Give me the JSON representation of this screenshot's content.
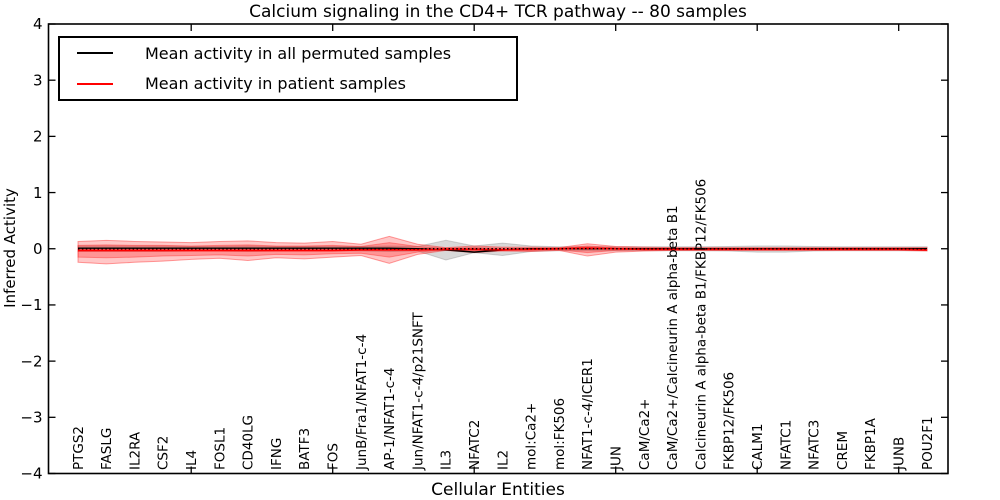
{
  "chart_data": {
    "type": "line",
    "title": "Calcium signaling in the CD4+ TCR pathway -- 80 samples",
    "xlabel": "Cellular Entities",
    "ylabel": "Inferred Activity",
    "ylim": [
      -4,
      4
    ],
    "yticks": [
      {
        "value": 4,
        "label": "4"
      },
      {
        "value": 3,
        "label": "3"
      },
      {
        "value": 2,
        "label": "2"
      },
      {
        "value": 1,
        "label": "1"
      },
      {
        "value": 0,
        "label": "0"
      },
      {
        "value": -1,
        "label": "−1"
      },
      {
        "value": -2,
        "label": "−2"
      },
      {
        "value": -3,
        "label": "−3"
      },
      {
        "value": -4,
        "label": "−4"
      }
    ],
    "xtick_values": [
      5,
      10,
      15,
      20,
      25,
      30
    ],
    "grid": false,
    "legend_position": "upper-left",
    "categories": [
      "PTGS2",
      "FASLG",
      "IL2RA",
      "CSF2",
      "IL4",
      "FOSL1",
      "CD40LG",
      "IFNG",
      "BATF3",
      "FOS",
      "JunB/Fra1/NFAT1-c-4",
      "AP-1/NFAT1-c-4",
      "Jun/NFAT1-c-4/p21SNFT",
      "IL3",
      "NFATC2",
      "IL2",
      "mol:Ca2+",
      "mol:FK506",
      "NFAT1-c-4/ICER1",
      "JUN",
      "CaM/Ca2+",
      "CaM/Ca2+/Calcineurin A alpha-beta B1",
      "Calcineurin A alpha-beta B1/FKBP12/FK506",
      "FKBP12/FK506",
      "CALM1",
      "NFATC1",
      "NFATC3",
      "CREM",
      "FKBP1A",
      "JUNB",
      "POU2F1"
    ],
    "series": [
      {
        "name": "Mean activity in all permuted samples",
        "color": "#000000",
        "values": [
          0.01,
          0.01,
          0.01,
          0.01,
          0.01,
          0.01,
          0.01,
          0.01,
          0.01,
          0.01,
          0.01,
          0.01,
          0.0,
          -0.02,
          -0.06,
          -0.02,
          0.0,
          0.0,
          0.0,
          0.0,
          0.0,
          0.0,
          0.0,
          0.0,
          0.0,
          0.0,
          0.0,
          0.0,
          0.0,
          0.0,
          0.0
        ]
      },
      {
        "name": "Mean activity in patient samples",
        "color": "#ff0000",
        "values": [
          -0.03,
          -0.03,
          -0.03,
          -0.03,
          -0.03,
          -0.03,
          -0.03,
          -0.03,
          -0.03,
          -0.03,
          -0.02,
          -0.02,
          -0.02,
          -0.01,
          -0.01,
          -0.02,
          -0.01,
          0.0,
          0.01,
          0.0,
          -0.01,
          -0.01,
          -0.01,
          -0.01,
          -0.01,
          -0.01,
          -0.01,
          -0.01,
          -0.01,
          -0.01,
          -0.02
        ]
      }
    ],
    "bands": [
      {
        "name": "permuted-samples-std",
        "color": "#828282",
        "fill_opacity": 0.3,
        "edge_opacity": 0.35,
        "upper": [
          0.05,
          0.05,
          0.05,
          0.05,
          0.04,
          0.04,
          0.05,
          0.04,
          0.04,
          0.04,
          0.04,
          0.05,
          0.04,
          0.15,
          0.05,
          0.1,
          0.05,
          0.035,
          0.035,
          0.035,
          0.035,
          0.035,
          0.035,
          0.04,
          0.05,
          0.05,
          0.04,
          0.035,
          0.035,
          0.035,
          0.035
        ],
        "lower": [
          -0.05,
          -0.05,
          -0.05,
          -0.05,
          -0.04,
          -0.04,
          -0.05,
          -0.04,
          -0.04,
          -0.04,
          -0.04,
          -0.05,
          -0.04,
          -0.2,
          -0.07,
          -0.12,
          -0.05,
          -0.035,
          -0.035,
          -0.035,
          -0.035,
          -0.035,
          -0.035,
          -0.04,
          -0.06,
          -0.06,
          -0.04,
          -0.035,
          -0.035,
          -0.035,
          -0.035
        ]
      },
      {
        "name": "patient-samples-std-outer",
        "color": "#ff1414",
        "fill_opacity": 0.24,
        "edge_opacity": 0.4,
        "upper": [
          0.13,
          0.15,
          0.13,
          0.12,
          0.11,
          0.13,
          0.14,
          0.11,
          0.1,
          0.13,
          0.08,
          0.22,
          0.08,
          0.02,
          0.05,
          0.03,
          0.03,
          0.02,
          0.09,
          0.04,
          0.03,
          0.02,
          0.02,
          0.02,
          0.02,
          0.02,
          0.02,
          0.02,
          0.02,
          0.02,
          0.02
        ],
        "lower": [
          -0.24,
          -0.27,
          -0.24,
          -0.22,
          -0.19,
          -0.17,
          -0.21,
          -0.16,
          -0.18,
          -0.15,
          -0.12,
          -0.26,
          -0.1,
          -0.03,
          -0.07,
          -0.04,
          -0.05,
          -0.03,
          -0.13,
          -0.06,
          -0.04,
          -0.03,
          -0.03,
          -0.03,
          -0.03,
          -0.03,
          -0.03,
          -0.03,
          -0.03,
          -0.03,
          -0.04
        ]
      },
      {
        "name": "patient-samples-std-inner",
        "color": "#ff1414",
        "fill_opacity": 0.28,
        "edge_opacity": 0.35,
        "upper": [
          0.06,
          0.07,
          0.06,
          0.06,
          0.05,
          0.06,
          0.07,
          0.05,
          0.05,
          0.06,
          0.04,
          0.11,
          0.04,
          0.01,
          0.02,
          0.01,
          0.01,
          0.01,
          0.05,
          0.02,
          0.01,
          0.01,
          0.01,
          0.01,
          0.01,
          0.01,
          0.01,
          0.01,
          0.01,
          0.01,
          0.01
        ],
        "lower": [
          -0.15,
          -0.16,
          -0.15,
          -0.13,
          -0.12,
          -0.11,
          -0.13,
          -0.1,
          -0.11,
          -0.09,
          -0.08,
          -0.15,
          -0.06,
          -0.02,
          -0.04,
          -0.02,
          -0.03,
          -0.02,
          -0.07,
          -0.03,
          -0.02,
          -0.02,
          -0.02,
          -0.02,
          -0.02,
          -0.02,
          -0.02,
          -0.02,
          -0.02,
          -0.02,
          -0.03
        ]
      }
    ],
    "zero_line": {
      "y": 0,
      "style": "dotted",
      "color": "#000000"
    }
  },
  "legend": {
    "entries": [
      {
        "label": "Mean activity in all permuted samples",
        "color": "#000000"
      },
      {
        "label": "Mean activity in patient samples",
        "color": "#ff0000"
      }
    ]
  }
}
